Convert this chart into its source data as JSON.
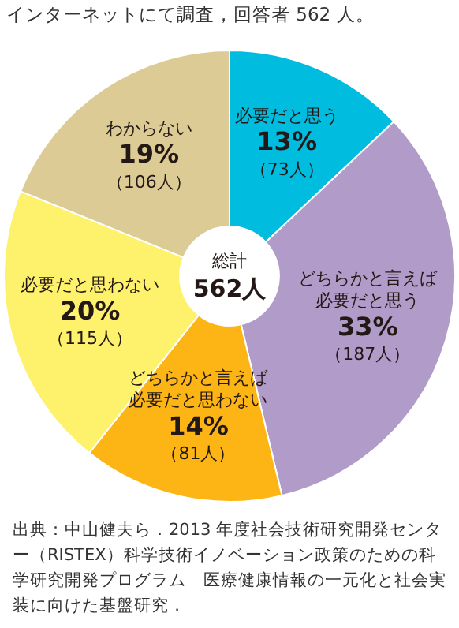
{
  "chart_data": {
    "type": "donut",
    "title": "インターネットにて調査，回答者 562 人。",
    "categories": [
      "必要だと思う",
      "どちらかと言えば必要だと思う",
      "どちらかと言えば必要だと思わない",
      "必要だと思わない",
      "わからない"
    ],
    "values": [
      73,
      187,
      81,
      115,
      106
    ],
    "value_labels": [
      "13%\n（73人）",
      "33%\n（187人）",
      "14%\n（81人）",
      "20%\n（115人）",
      "19%\n（106人）"
    ],
    "colors": [
      "#00bde0",
      "#b19bc9",
      "#fcb514",
      "#fef16c",
      "#dccb95"
    ],
    "annotations": [
      "総計\n562人",
      "出典：中山健夫ら．2013 年度社会技術研究開発センター（RISTEX）科学技術イノベーション政策のための科学研究開発プログラム　医療健康情報の一元化と社会実装に向けた基盤研究．"
    ],
    "legend": false
  }
}
